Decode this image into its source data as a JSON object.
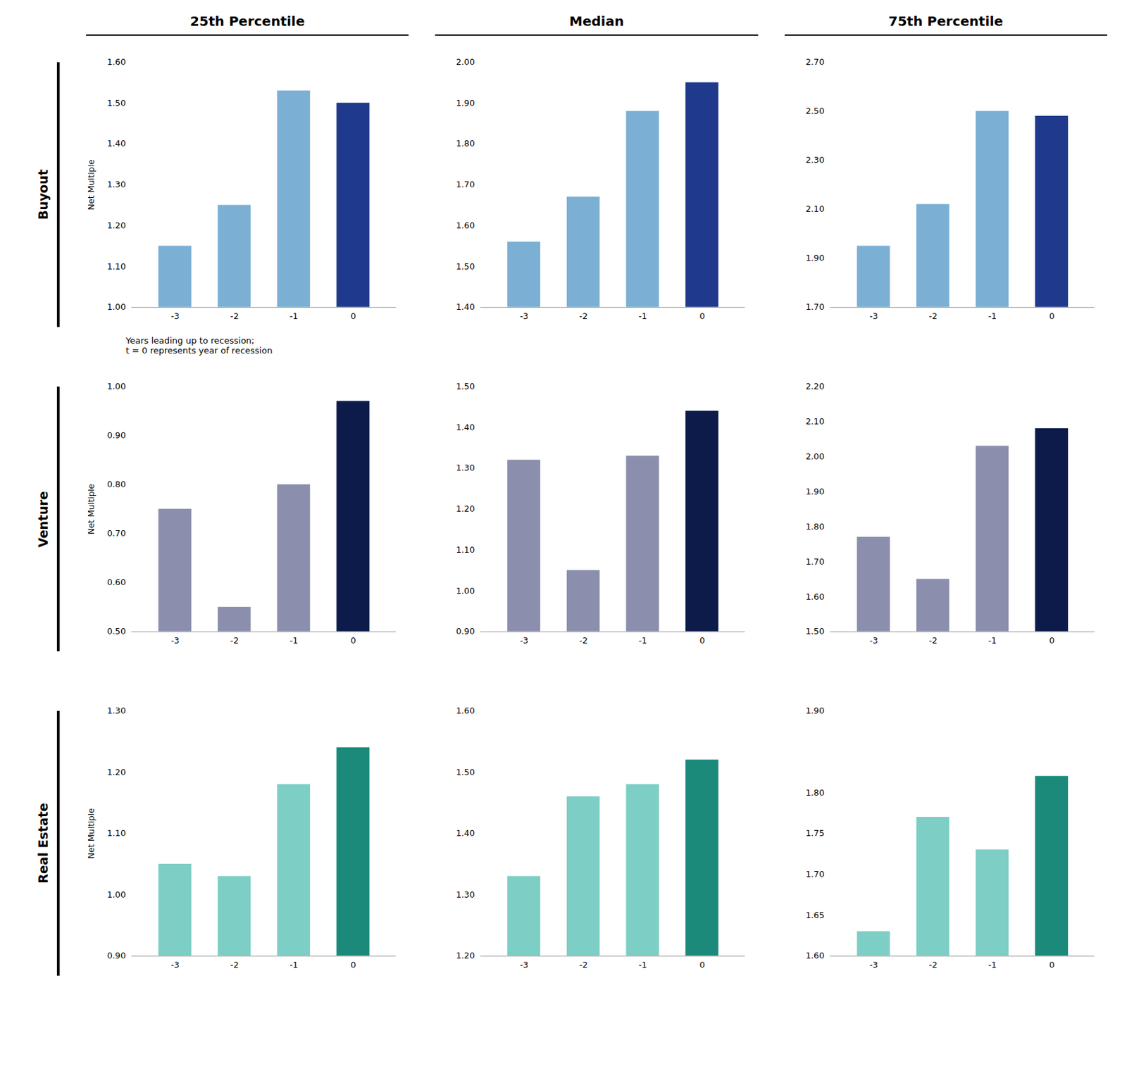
{
  "chart_data": [
    {
      "type": "bar",
      "categories": [
        "-3",
        "-2",
        "-1",
        "0"
      ],
      "values": [
        1.15,
        1.25,
        1.53,
        1.5
      ],
      "colors": [
        "#7BAFD4",
        "#7BAFD4",
        "#7BAFD4",
        "#1F3A8C"
      ],
      "ylim": [
        1.0,
        1.6
      ],
      "yticks": [
        {
          "value": 1.0,
          "label": "1.00"
        },
        {
          "value": 1.1,
          "label": "1.10"
        },
        {
          "value": 1.2,
          "label": "1.20"
        },
        {
          "value": 1.3,
          "label": "1.30"
        },
        {
          "value": 1.4,
          "label": "1.40"
        },
        {
          "value": 1.5,
          "label": "1.50"
        },
        {
          "value": 1.6,
          "label": "1.60"
        }
      ],
      "ylabel": "Net Multiple",
      "annotations": [
        "Years leading up to recession;\nt = 0 represents year of recession"
      ]
    },
    {
      "type": "bar",
      "categories": [
        "-3",
        "-2",
        "-1",
        "0"
      ],
      "values": [
        1.56,
        1.67,
        1.88,
        1.95
      ],
      "colors": [
        "#7BAFD4",
        "#7BAFD4",
        "#7BAFD4",
        "#1F3A8C"
      ],
      "ylim": [
        1.4,
        2.0
      ],
      "yticks": [
        {
          "value": 1.4,
          "label": "1.40"
        },
        {
          "value": 1.5,
          "label": "1.50"
        },
        {
          "value": 1.6,
          "label": "1.60"
        },
        {
          "value": 1.7,
          "label": "1.70"
        },
        {
          "value": 1.8,
          "label": "1.80"
        },
        {
          "value": 1.9,
          "label": "1.90"
        },
        {
          "value": 2.0,
          "label": "2.00"
        }
      ]
    },
    {
      "type": "bar",
      "categories": [
        "-3",
        "-2",
        "-1",
        "0"
      ],
      "values": [
        1.95,
        2.12,
        2.5,
        2.48
      ],
      "colors": [
        "#7BAFD4",
        "#7BAFD4",
        "#7BAFD4",
        "#1F3A8C"
      ],
      "ylim": [
        1.7,
        2.7
      ],
      "yticks": [
        {
          "value": 1.7,
          "label": "1.70"
        },
        {
          "value": 1.9,
          "label": "1.90"
        },
        {
          "value": 2.1,
          "label": "2.10"
        },
        {
          "value": 2.3,
          "label": "2.30"
        },
        {
          "value": 2.5,
          "label": "2.50"
        },
        {
          "value": 2.7,
          "label": "2.70"
        }
      ]
    },
    {
      "type": "bar",
      "categories": [
        "-3",
        "-2",
        "-1",
        "0"
      ],
      "values": [
        0.75,
        0.55,
        0.8,
        0.97
      ],
      "colors": [
        "#8B8EAC",
        "#8B8EAC",
        "#8B8EAC",
        "#0D1B4B"
      ],
      "ylim": [
        0.5,
        1.0
      ],
      "yticks": [
        {
          "value": 0.5,
          "label": "0.50"
        },
        {
          "value": 0.6,
          "label": "0.60"
        },
        {
          "value": 0.7,
          "label": "0.70"
        },
        {
          "value": 0.8,
          "label": "0.80"
        },
        {
          "value": 0.9,
          "label": "0.90"
        },
        {
          "value": 1.0,
          "label": "1.00"
        }
      ],
      "ylabel": "Net Multiple"
    },
    {
      "type": "bar",
      "categories": [
        "-3",
        "-2",
        "-1",
        "0"
      ],
      "values": [
        1.32,
        1.05,
        1.33,
        1.44
      ],
      "colors": [
        "#8B8EAC",
        "#8B8EAC",
        "#8B8EAC",
        "#0D1B4B"
      ],
      "ylim": [
        0.9,
        1.5
      ],
      "yticks": [
        {
          "value": 0.9,
          "label": "0.90"
        },
        {
          "value": 1.0,
          "label": "1.00"
        },
        {
          "value": 1.1,
          "label": "1.10"
        },
        {
          "value": 1.2,
          "label": "1.20"
        },
        {
          "value": 1.3,
          "label": "1.30"
        },
        {
          "value": 1.4,
          "label": "1.40"
        },
        {
          "value": 1.5,
          "label": "1.50"
        }
      ]
    },
    {
      "type": "bar",
      "categories": [
        "-3",
        "-2",
        "-1",
        "0"
      ],
      "values": [
        1.77,
        1.65,
        2.03,
        2.08
      ],
      "colors": [
        "#8B8EAC",
        "#8B8EAC",
        "#8B8EAC",
        "#0D1B4B"
      ],
      "ylim": [
        1.5,
        2.2
      ],
      "yticks": [
        {
          "value": 1.5,
          "label": "1.50"
        },
        {
          "value": 1.6,
          "label": "1.60"
        },
        {
          "value": 1.7,
          "label": "1.70"
        },
        {
          "value": 1.8,
          "label": "1.80"
        },
        {
          "value": 1.9,
          "label": "1.90"
        },
        {
          "value": 2.0,
          "label": "2.00"
        },
        {
          "value": 2.1,
          "label": "2.10"
        },
        {
          "value": 2.2,
          "label": "2.20"
        }
      ]
    },
    {
      "type": "bar",
      "categories": [
        "-3",
        "-2",
        "-1",
        "0"
      ],
      "values": [
        1.05,
        1.03,
        1.18,
        1.24
      ],
      "colors": [
        "#7DCEC4",
        "#7DCEC4",
        "#7DCEC4",
        "#1B8A7A"
      ],
      "ylim": [
        0.9,
        1.3
      ],
      "yticks": [
        {
          "value": 0.9,
          "label": "0.90"
        },
        {
          "value": 1.0,
          "label": "1.00"
        },
        {
          "value": 1.1,
          "label": "1.10"
        },
        {
          "value": 1.2,
          "label": "1.20"
        },
        {
          "value": 1.3,
          "label": "1.30"
        }
      ],
      "ylabel": "Net Multiple"
    },
    {
      "type": "bar",
      "categories": [
        "-3",
        "-2",
        "-1",
        "0"
      ],
      "values": [
        1.33,
        1.46,
        1.48,
        1.52
      ],
      "colors": [
        "#7DCEC4",
        "#7DCEC4",
        "#7DCEC4",
        "#1B8A7A"
      ],
      "ylim": [
        1.2,
        1.6
      ],
      "yticks": [
        {
          "value": 1.2,
          "label": "1.20"
        },
        {
          "value": 1.3,
          "label": "1.30"
        },
        {
          "value": 1.4,
          "label": "1.40"
        },
        {
          "value": 1.5,
          "label": "1.50"
        },
        {
          "value": 1.6,
          "label": "1.60"
        }
      ]
    },
    {
      "type": "bar",
      "categories": [
        "-3",
        "-2",
        "-1",
        "0"
      ],
      "values": [
        1.63,
        1.77,
        1.73,
        1.82
      ],
      "colors": [
        "#7DCEC4",
        "#7DCEC4",
        "#7DCEC4",
        "#1B8A7A"
      ],
      "ylim": [
        1.6,
        1.9
      ],
      "yticks": [
        {
          "value": 1.6,
          "label": "1.60"
        },
        {
          "value": 1.65,
          "label": "1.65"
        },
        {
          "value": 1.7,
          "label": "1.70"
        },
        {
          "value": 1.75,
          "label": "1.75"
        },
        {
          "value": 1.8,
          "label": "1.80"
        },
        {
          "value": 1.9,
          "label": "1.90"
        }
      ]
    }
  ],
  "col_titles": [
    "25th Percentile",
    "Median",
    "75th Percentile"
  ],
  "row_titles": [
    "Buyout",
    "Venture",
    "Real Estate"
  ]
}
